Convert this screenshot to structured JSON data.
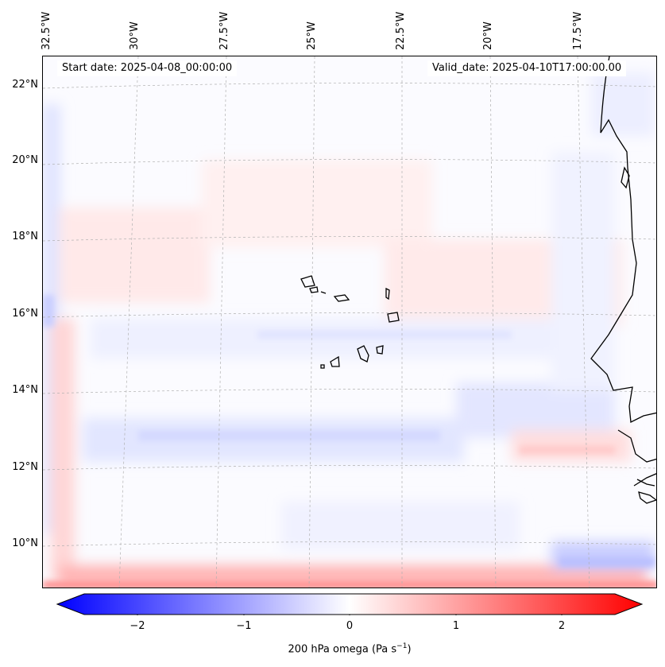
{
  "start_date": "Start date: 2025-04-08_00:00:00",
  "valid_date": "Valid_date: 2025-04-10T17:00:00.00",
  "latitude_labels": [
    "22°N",
    "20°N",
    "18°N",
    "16°N",
    "14°N",
    "12°N",
    "10°N"
  ],
  "longitude_labels": [
    "32.5°W",
    "30°W",
    "27.5°W",
    "25°W",
    "22.5°W",
    "20°W",
    "17.5°W"
  ],
  "colorbar": {
    "title": "200 hPa omega (Pa s",
    "title_exponent": "−1",
    "title_suffix": ")",
    "ticks": [
      "−2",
      "−1",
      "0",
      "1",
      "2"
    ],
    "range": [
      -2.5,
      2.5
    ],
    "min_color": "#0000ff",
    "mid_color": "#ffffff",
    "max_color": "#ff0000"
  },
  "colors": {
    "coastline": "#000000",
    "gridline": "#b0b0b0"
  }
}
